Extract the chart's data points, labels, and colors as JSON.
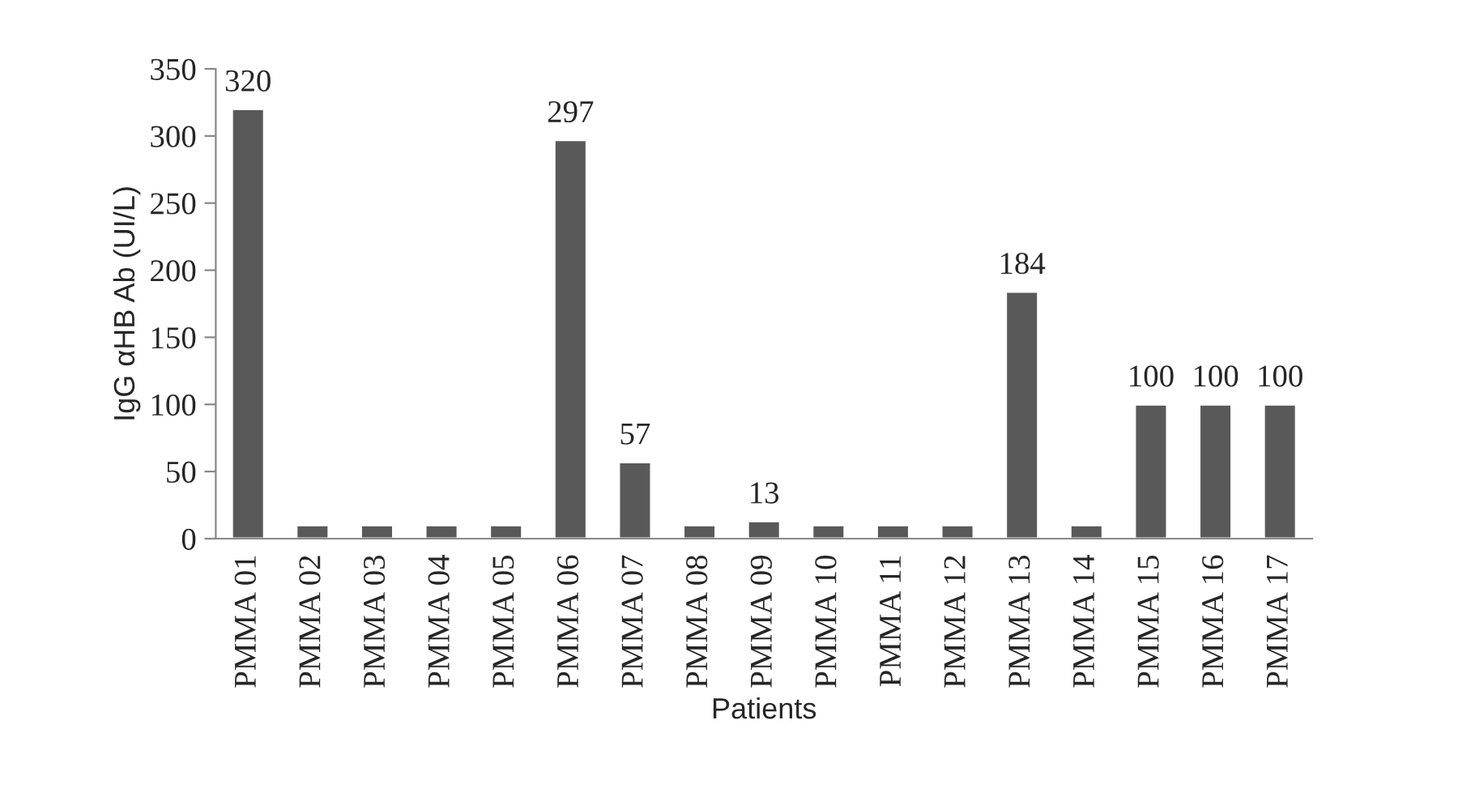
{
  "chart_data": {
    "type": "bar",
    "xlabel": "Patients",
    "ylabel": "IgG αHB Ab (UI/L)",
    "categories": [
      "PMMA 01",
      "PMMA 02",
      "PMMA 03",
      "PMMA 04",
      "PMMA 05",
      "PMMA 06",
      "PMMA 07",
      "PMMA 08",
      "PMMA 09",
      "PMMA 10",
      "PMMA 11",
      "PMMA 12",
      "PMMA 13",
      "PMMA 14",
      "PMMA 15",
      "PMMA 16",
      "PMMA 17"
    ],
    "values": [
      320,
      10,
      10,
      10,
      10,
      297,
      57,
      10,
      13,
      10,
      10,
      10,
      184,
      10,
      100,
      100,
      100
    ],
    "value_labels": [
      "320",
      null,
      null,
      null,
      null,
      "297",
      "57",
      null,
      "13",
      null,
      null,
      null,
      "184",
      null,
      "100",
      "100",
      "100"
    ],
    "color": "#595959",
    "ylim": [
      0,
      350
    ],
    "yticks": [
      0,
      50,
      100,
      150,
      200,
      250,
      300,
      350
    ],
    "grid": false,
    "legend": false
  }
}
